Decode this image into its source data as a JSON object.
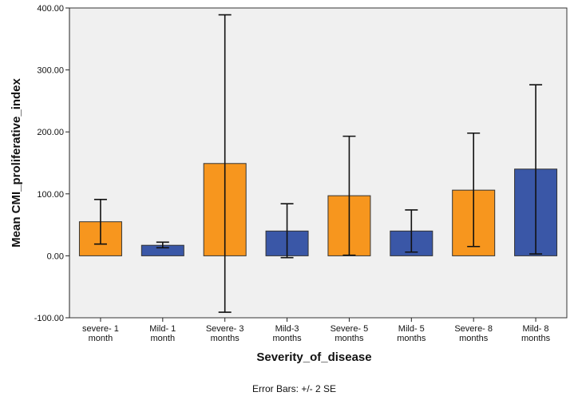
{
  "chart_data": {
    "type": "bar",
    "xlabel": "Severity_of_disease",
    "ylabel": "Mean CMI_proliferative_index",
    "footnote": "Error Bars: +/- 2 SE",
    "ylim": [
      -100,
      400
    ],
    "yticks": [
      -100,
      0,
      100,
      200,
      300,
      400
    ],
    "ytick_labels": [
      "-100.00",
      "0.00",
      "100.00",
      "200.00",
      "300.00",
      "400.00"
    ],
    "grid": false,
    "categories": [
      [
        "severe- 1",
        "month"
      ],
      [
        "Mild- 1",
        "month"
      ],
      [
        "Severe- 3",
        "months"
      ],
      [
        "Mild-3",
        "months"
      ],
      [
        "Severe- 5",
        "months"
      ],
      [
        "Mild- 5",
        "months"
      ],
      [
        "Severe- 8",
        "months"
      ],
      [
        "Mild- 8",
        "months"
      ]
    ],
    "values": [
      55,
      17,
      149,
      40,
      97,
      40,
      106,
      140
    ],
    "error_low": [
      19,
      13,
      -91,
      -3,
      1,
      6,
      15,
      3
    ],
    "error_high": [
      91,
      22,
      389,
      84,
      193,
      74,
      198,
      276
    ],
    "colors": [
      "#f7961e",
      "#3a57a7",
      "#f7961e",
      "#3a57a7",
      "#f7961e",
      "#3a57a7",
      "#f7961e",
      "#3a57a7"
    ],
    "plot_background": "#f0f0f0"
  }
}
